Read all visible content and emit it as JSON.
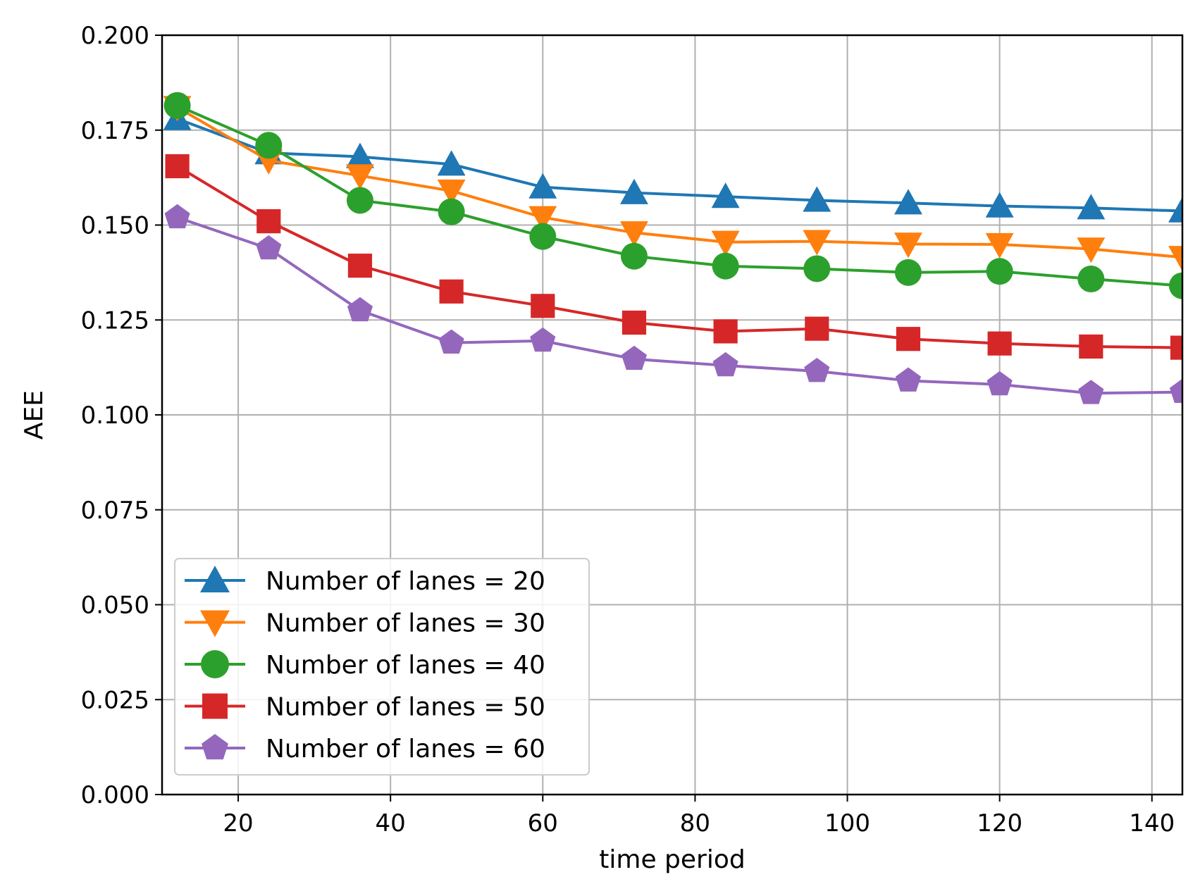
{
  "chart_data": {
    "type": "line",
    "title": "",
    "xlabel": "time period",
    "ylabel": "AEE",
    "xlim": [
      10,
      144
    ],
    "ylim": [
      0,
      0.2
    ],
    "xticks": [
      20,
      40,
      60,
      80,
      100,
      120,
      140
    ],
    "xtick_labels": [
      "20",
      "40",
      "60",
      "80",
      "100",
      "120",
      "140"
    ],
    "yticks": [
      0,
      0.025,
      0.05,
      0.075,
      0.1,
      0.125,
      0.15,
      0.175,
      0.2
    ],
    "ytick_labels": [
      "0.000",
      "0.025",
      "0.050",
      "0.075",
      "0.100",
      "0.125",
      "0.150",
      "0.175",
      "0.200"
    ],
    "grid": true,
    "legend_position": "lower-left",
    "x": [
      12,
      24,
      36,
      48,
      60,
      72,
      84,
      96,
      108,
      120,
      132,
      144
    ],
    "series": [
      {
        "name": "Number of lanes = 20",
        "color": "#1f77b4",
        "marker": "triangle-up",
        "values": [
          0.178,
          0.169,
          0.168,
          0.166,
          0.16,
          0.1585,
          0.1575,
          0.1565,
          0.1558,
          0.155,
          0.1545,
          0.1537
        ]
      },
      {
        "name": "Number of lanes = 30",
        "color": "#ff7f0e",
        "marker": "triangle-down",
        "values": [
          0.181,
          0.167,
          0.163,
          0.159,
          0.152,
          0.148,
          0.1455,
          0.1457,
          0.145,
          0.1449,
          0.1437,
          0.1415
        ]
      },
      {
        "name": "Number of lanes = 40",
        "color": "#2ca02c",
        "marker": "circle",
        "values": [
          0.1815,
          0.171,
          0.1565,
          0.1535,
          0.147,
          0.1418,
          0.1392,
          0.1385,
          0.1375,
          0.1378,
          0.1358,
          0.134
        ]
      },
      {
        "name": "Number of lanes = 50",
        "color": "#d62728",
        "marker": "square",
        "values": [
          0.1655,
          0.151,
          0.1393,
          0.1325,
          0.1287,
          0.1243,
          0.122,
          0.1227,
          0.12,
          0.1188,
          0.118,
          0.1177
        ]
      },
      {
        "name": "Number of lanes = 60",
        "color": "#9467bd",
        "marker": "pentagon",
        "values": [
          0.152,
          0.1438,
          0.1275,
          0.119,
          0.1195,
          0.1147,
          0.113,
          0.1115,
          0.109,
          0.108,
          0.1057,
          0.106
        ]
      }
    ]
  }
}
